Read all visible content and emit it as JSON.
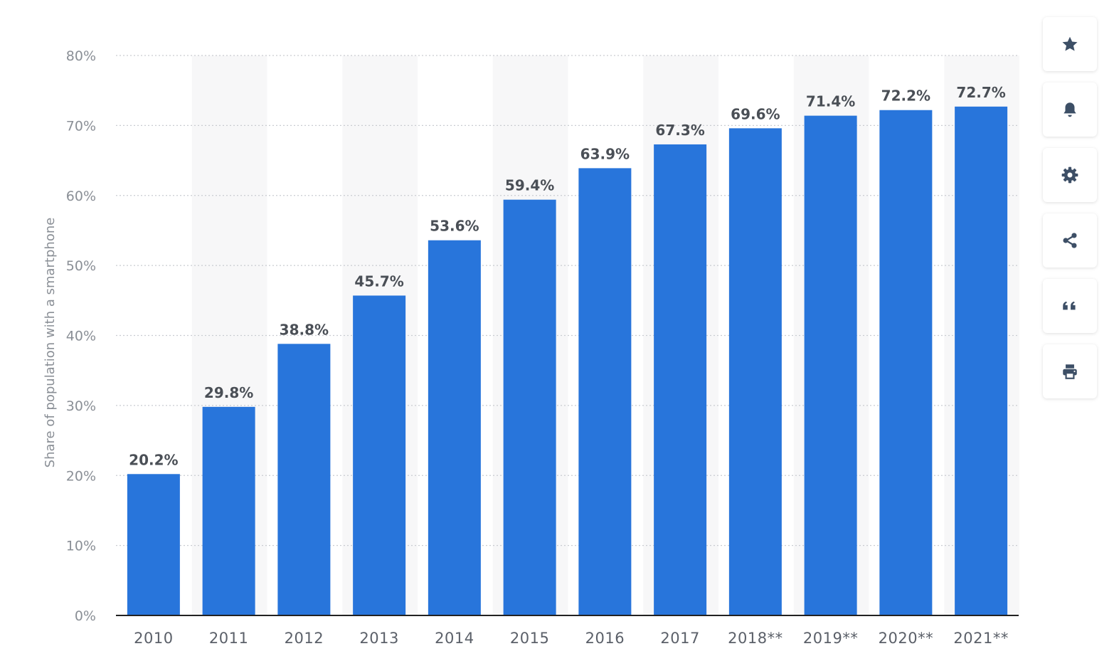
{
  "chart_data": {
    "type": "bar",
    "categories": [
      "2010",
      "2011",
      "2012",
      "2013",
      "2014",
      "2015",
      "2016",
      "2017",
      "2018**",
      "2019**",
      "2020**",
      "2021**"
    ],
    "values": [
      20.2,
      29.8,
      38.8,
      45.7,
      53.6,
      59.4,
      63.9,
      67.3,
      69.6,
      71.4,
      72.2,
      72.7
    ],
    "data_labels": [
      "20.2%",
      "29.8%",
      "38.8%",
      "45.7%",
      "53.6%",
      "59.4%",
      "63.9%",
      "67.3%",
      "69.6%",
      "71.4%",
      "72.2%",
      "72.7%"
    ],
    "title": "",
    "xlabel": "",
    "ylabel": "Share of population with a smartphone",
    "ylim": [
      0,
      80
    ],
    "y_ticks": [
      0,
      10,
      20,
      30,
      40,
      50,
      60,
      70,
      80
    ],
    "y_tick_labels": [
      "0%",
      "10%",
      "20%",
      "30%",
      "40%",
      "50%",
      "60%",
      "70%",
      "80%"
    ],
    "grid": true,
    "legend": "none",
    "colors": {
      "bar": "#2875db",
      "grid": "#c9ccd1",
      "axis": "#222222",
      "band": "#f7f7f8"
    }
  },
  "toolbar": {
    "buttons": [
      {
        "name": "favorite-button",
        "icon": "star-icon"
      },
      {
        "name": "notification-button",
        "icon": "bell-icon"
      },
      {
        "name": "settings-button",
        "icon": "gear-icon"
      },
      {
        "name": "share-button",
        "icon": "share-icon"
      },
      {
        "name": "cite-button",
        "icon": "quote-icon"
      },
      {
        "name": "print-button",
        "icon": "printer-icon"
      }
    ],
    "icon_color": "#3d4f66"
  }
}
